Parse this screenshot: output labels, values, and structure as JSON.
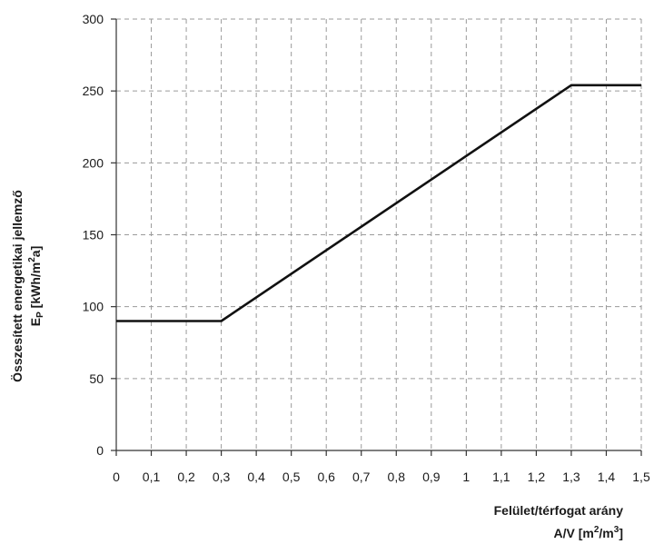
{
  "chart_data": {
    "type": "line",
    "ylabel_line1": "Összesített energetikai jellemző",
    "ylabel_line2_main": "E",
    "ylabel_line2_sub": "P",
    "ylabel_line2_unit_pre": " [kWh/m",
    "ylabel_line2_unit_sup": "2",
    "ylabel_line2_unit_post": "a]",
    "xlabel_line1": "Felület/térfogat arány",
    "xlabel_line2_pre": "A/V [m",
    "xlabel_line2_sup1": "2",
    "xlabel_line2_mid": "/m",
    "xlabel_line2_sup2": "3",
    "xlabel_line2_post": "]",
    "xlim": [
      0,
      1.5
    ],
    "ylim": [
      0,
      300
    ],
    "x_ticks": [
      0,
      0.1,
      0.2,
      0.3,
      0.4,
      0.5,
      0.6,
      0.7,
      0.8,
      0.9,
      1,
      1.1,
      1.2,
      1.3,
      1.4,
      1.5
    ],
    "x_tick_labels": [
      "0",
      "0,1",
      "0,2",
      "0,3",
      "0,4",
      "0,5",
      "0,6",
      "0,7",
      "0,8",
      "0,9",
      "1",
      "1,1",
      "1,2",
      "1,3",
      "1,4",
      "1,5"
    ],
    "y_ticks": [
      0,
      50,
      100,
      150,
      200,
      250,
      300
    ],
    "y_tick_labels": [
      "0",
      "50",
      "100",
      "150",
      "200",
      "250",
      "300"
    ],
    "grid": true,
    "line_color": "#111111",
    "grid_color": "#9a9a9a",
    "series": [
      {
        "x": [
          0,
          0.3,
          1.3,
          1.5
        ],
        "y": [
          90,
          90,
          254,
          254
        ]
      }
    ]
  }
}
